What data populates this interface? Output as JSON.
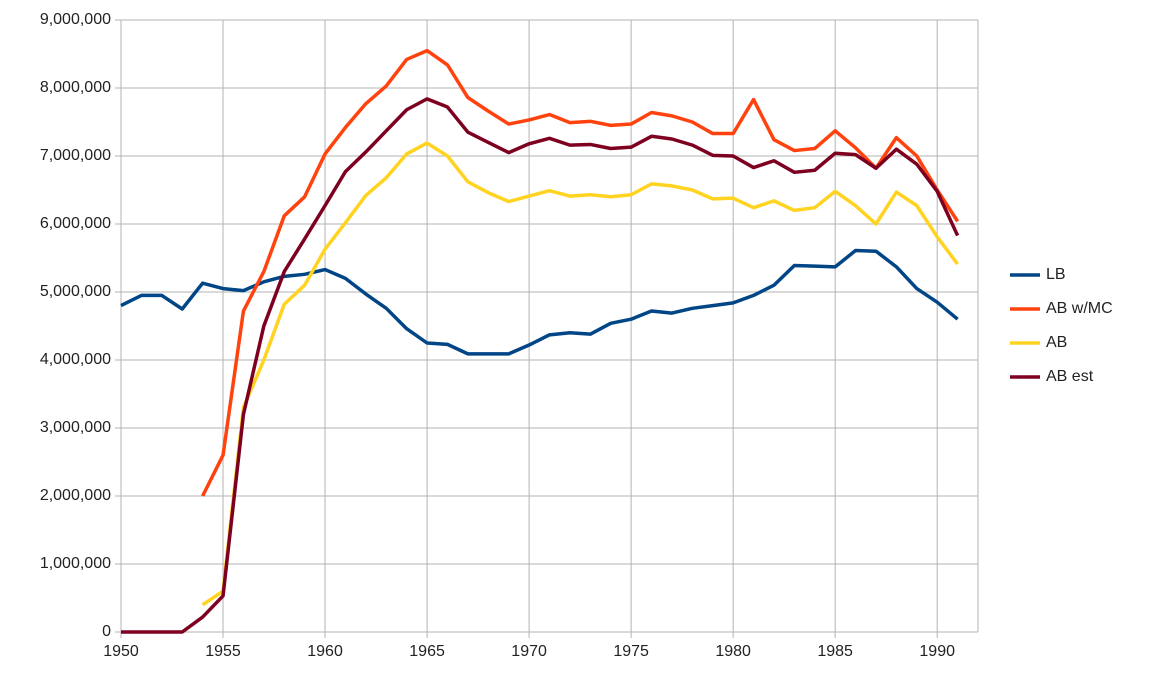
{
  "chart_data": {
    "type": "line",
    "x": [
      1950,
      1951,
      1952,
      1953,
      1954,
      1955,
      1956,
      1957,
      1958,
      1959,
      1960,
      1961,
      1962,
      1963,
      1964,
      1965,
      1966,
      1967,
      1968,
      1969,
      1970,
      1971,
      1972,
      1973,
      1974,
      1975,
      1976,
      1977,
      1978,
      1979,
      1980,
      1981,
      1982,
      1983,
      1984,
      1985,
      1986,
      1987,
      1988,
      1989,
      1990,
      1991
    ],
    "series": [
      {
        "name": "LB",
        "color": "#004586",
        "values": [
          4800000,
          4950000,
          4950000,
          4750000,
          5130000,
          5050000,
          5020000,
          5150000,
          5230000,
          5260000,
          5330000,
          5200000,
          4970000,
          4760000,
          4460000,
          4250000,
          4230000,
          4090000,
          4090000,
          4090000,
          4220000,
          4370000,
          4400000,
          4380000,
          4540000,
          4600000,
          4720000,
          4690000,
          4760000,
          4800000,
          4840000,
          4950000,
          5100000,
          5390000,
          5380000,
          5370000,
          5610000,
          5600000,
          5370000,
          5050000,
          4850000,
          4600000
        ]
      },
      {
        "name": "AB w/MC",
        "color": "#ff420e",
        "values": [
          null,
          null,
          null,
          null,
          2000000,
          2600000,
          4720000,
          5300000,
          6120000,
          6400000,
          7030000,
          7420000,
          7770000,
          8030000,
          8420000,
          8550000,
          8340000,
          7860000,
          7660000,
          7470000,
          7530000,
          7610000,
          7490000,
          7510000,
          7450000,
          7470000,
          7640000,
          7590000,
          7500000,
          7330000,
          7330000,
          7830000,
          7240000,
          7080000,
          7110000,
          7370000,
          7120000,
          6820000,
          7270000,
          7000000,
          6500000,
          6040000
        ]
      },
      {
        "name": "AB",
        "color": "#ffd320",
        "values": [
          null,
          null,
          null,
          null,
          400000,
          600000,
          3300000,
          4000000,
          4820000,
          5100000,
          5630000,
          6020000,
          6420000,
          6680000,
          7030000,
          7190000,
          7000000,
          6620000,
          6460000,
          6330000,
          6410000,
          6490000,
          6410000,
          6430000,
          6400000,
          6430000,
          6590000,
          6560000,
          6500000,
          6370000,
          6380000,
          6240000,
          6340000,
          6200000,
          6240000,
          6480000,
          6270000,
          6000000,
          6470000,
          6270000,
          5810000,
          5410000
        ]
      },
      {
        "name": "AB est",
        "color": "#7e0021",
        "values": [
          0,
          0,
          0,
          0,
          220000,
          530000,
          3200000,
          4500000,
          5300000,
          5780000,
          6270000,
          6770000,
          7060000,
          7370000,
          7680000,
          7840000,
          7720000,
          7350000,
          7200000,
          7050000,
          7180000,
          7260000,
          7160000,
          7170000,
          7110000,
          7130000,
          7290000,
          7250000,
          7160000,
          7010000,
          7000000,
          6830000,
          6930000,
          6760000,
          6790000,
          7040000,
          7020000,
          6820000,
          7100000,
          6880000,
          6480000,
          5830000
        ]
      }
    ],
    "xlim": [
      1950,
      1992
    ],
    "xticks": [
      1950,
      1955,
      1960,
      1965,
      1970,
      1975,
      1980,
      1985,
      1990
    ],
    "ylim": [
      0,
      9000000
    ],
    "yticks": [
      0,
      {
        "value": 1000000,
        "label": "1,000,000"
      },
      {
        "value": 2000000,
        "label": "2,000,000"
      },
      {
        "value": 3000000,
        "label": "3,000,000"
      },
      {
        "value": 4000000,
        "label": "4,000,000"
      },
      {
        "value": 5000000,
        "label": "5,000,000"
      },
      {
        "value": 6000000,
        "label": "6,000,000"
      },
      {
        "value": 7000000,
        "label": "7,000,000"
      },
      {
        "value": 8000000,
        "label": "8,000,000"
      },
      {
        "value": 9000000,
        "label": "9,000,000"
      }
    ],
    "grid": true,
    "legend": "right"
  }
}
